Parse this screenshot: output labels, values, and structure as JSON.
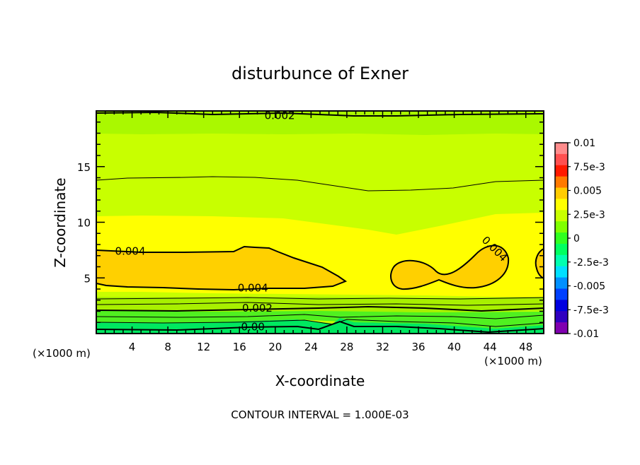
{
  "chart_data": {
    "type": "heatmap",
    "title": "disturbunce of Exner",
    "xlabel": "X-coordinate",
    "ylabel": "Z-coordinate",
    "x_unit_left": "(×1000 m)",
    "x_unit_right": "(×1000 m)",
    "footer": "CONTOUR INTERVAL = 1.000E-03",
    "xlim": [
      0,
      50
    ],
    "ylim": [
      0,
      20
    ],
    "x_ticks": [
      4,
      8,
      12,
      16,
      20,
      24,
      28,
      32,
      36,
      40,
      44,
      48
    ],
    "y_ticks": [
      5,
      10,
      15
    ],
    "grid": false,
    "colorbar": {
      "placement": "right",
      "labels": [
        "0.01",
        "7.5e-3",
        "0.005",
        "2.5e-3",
        "0",
        "-2.5e-3",
        "-0.005",
        "-7.5e-3",
        "-0.01"
      ],
      "colors_top_to_bottom": [
        "#ff8c8c",
        "#ff5050",
        "#ff1a00",
        "#ff7a00",
        "#ffcc00",
        "#ffff00",
        "#c8ff00",
        "#80ff00",
        "#30ff20",
        "#00ff60",
        "#00ffb0",
        "#00e0ff",
        "#0090ff",
        "#0040ff",
        "#0000e0",
        "#3000c0",
        "#8000b0"
      ]
    },
    "contour_labels": [
      {
        "text": "0.002",
        "x": 20.5,
        "z": 19.6
      },
      {
        "text": "0.004",
        "x": 3.8,
        "z": 7.4
      },
      {
        "text": "0.004",
        "x": 17.5,
        "z": 4.1
      },
      {
        "text": "0.004",
        "x": 44.5,
        "z": 7.6
      },
      {
        "text": "0.002",
        "x": 18,
        "z": 2.3
      },
      {
        "text": "0.00",
        "x": 17.5,
        "z": 0.6
      }
    ]
  }
}
